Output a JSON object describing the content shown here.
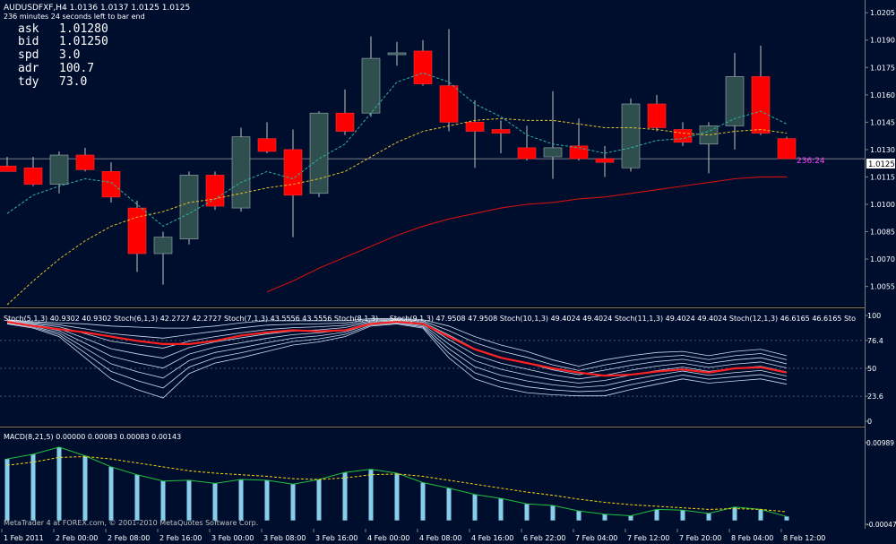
{
  "header": {
    "symbol_line": "AUDUSDFXF,H4  1.0136 1.0137 1.0125 1.0125",
    "timer_line": "236 minutes 24 seconds left to bar end"
  },
  "quote_box": [
    {
      "label": "ask",
      "value": "1.01280"
    },
    {
      "label": "bid",
      "value": "1.01250"
    },
    {
      "label": "spd",
      "value": "3.0"
    },
    {
      "label": "adr",
      "value": "100.7"
    },
    {
      "label": "tdy",
      "value": "73.0"
    }
  ],
  "bar_timer": "236:24",
  "current_price_label": "1.0125",
  "watermark": "MetaTrader 4 at FOREX.com, © 2001-2010 MetaQuotes Software Corp.",
  "stoch_legend": "Stoch(5,1,3) 40.9302 40.9302  Stoch(6,1,3) 42.2727 42.2727  Stoch(7,1,3) 43.5556 43.5556  Stoch(8,1,3) ...  Stoch(9,1,3) 47.9508 47.9508  Stoch(10,1,3) 49.4024 49.4024  Stoch(11,1,3) 49.4024 49.4024  Stoch(12,1,3) 46.6165 46.6165  Sto",
  "macd_legend": "MACD(8,21,5) 0.00000 0.00083 0.00083 0.00143",
  "colors": {
    "background": "#000e2e",
    "grid": "#1c2a55",
    "bull_candle": "#2f4f4f",
    "bear_candle": "#ff0000",
    "ma_fast": "#2fb3a0",
    "ma_mid": "#e0c02a",
    "ma_slow": "#d01010",
    "stoch_lines": "#c8dcf0",
    "stoch_main": "#ff2020",
    "macd_hist": "#87ceeb",
    "macd_signal": "#ffd700",
    "macd_line": "#20c040",
    "text": "#ffffff"
  },
  "chart_data": [
    {
      "type": "candlestick",
      "symbol": "AUDUSDFXF",
      "timeframe": "H4",
      "ylim": [
        1.0045,
        1.021
      ],
      "y_ticks": [
        "1.0205",
        "1.0190",
        "1.0175",
        "1.0160",
        "1.0145",
        "1.0130",
        "1.0115",
        "1.0100",
        "1.0085",
        "1.0070",
        "1.0055"
      ],
      "x_ticks": [
        "1 Feb 2011",
        "2 Feb 00:00",
        "2 Feb 08:00",
        "2 Feb 16:00",
        "3 Feb 00:00",
        "3 Feb 08:00",
        "3 Feb 16:00",
        "4 Feb 00:00",
        "4 Feb 08:00",
        "4 Feb 16:00",
        "6 Feb 22:00",
        "7 Feb 04:00",
        "7 Feb 12:00",
        "7 Feb 20:00",
        "8 Feb 04:00",
        "8 Feb 12:00"
      ],
      "candles": [
        {
          "o": 1.0121,
          "h": 1.0126,
          "l": 1.0118,
          "c": 1.0118
        },
        {
          "o": 1.012,
          "h": 1.0126,
          "l": 1.011,
          "c": 1.0111
        },
        {
          "o": 1.0111,
          "h": 1.0129,
          "l": 1.0106,
          "c": 1.0127
        },
        {
          "o": 1.0127,
          "h": 1.0131,
          "l": 1.0118,
          "c": 1.0119
        },
        {
          "o": 1.0118,
          "h": 1.0123,
          "l": 1.0101,
          "c": 1.0104
        },
        {
          "o": 1.0098,
          "h": 1.0102,
          "l": 1.0063,
          "c": 1.0073
        },
        {
          "o": 1.0073,
          "h": 1.0085,
          "l": 1.0056,
          "c": 1.0082
        },
        {
          "o": 1.0081,
          "h": 1.0118,
          "l": 1.0078,
          "c": 1.0116
        },
        {
          "o": 1.0116,
          "h": 1.0118,
          "l": 1.0097,
          "c": 1.0099
        },
        {
          "o": 1.0098,
          "h": 1.0142,
          "l": 1.0096,
          "c": 1.0137
        },
        {
          "o": 1.0136,
          "h": 1.0145,
          "l": 1.0128,
          "c": 1.0129
        },
        {
          "o": 1.013,
          "h": 1.0141,
          "l": 1.0082,
          "c": 1.0105
        },
        {
          "o": 1.0106,
          "h": 1.0151,
          "l": 1.0104,
          "c": 1.015
        },
        {
          "o": 1.015,
          "h": 1.0163,
          "l": 1.0138,
          "c": 1.014
        },
        {
          "o": 1.015,
          "h": 1.0192,
          "l": 1.0148,
          "c": 1.018
        },
        {
          "o": 1.0182,
          "h": 1.0189,
          "l": 1.0176,
          "c": 1.0183
        },
        {
          "o": 1.0184,
          "h": 1.019,
          "l": 1.0165,
          "c": 1.0166
        },
        {
          "o": 1.0165,
          "h": 1.0196,
          "l": 1.014,
          "c": 1.0145
        },
        {
          "o": 1.0145,
          "h": 1.0157,
          "l": 1.012,
          "c": 1.014
        },
        {
          "o": 1.0141,
          "h": 1.0146,
          "l": 1.0128,
          "c": 1.0139
        },
        {
          "o": 1.0131,
          "h": 1.0143,
          "l": 1.0124,
          "c": 1.0125
        },
        {
          "o": 1.0126,
          "h": 1.0162,
          "l": 1.0114,
          "c": 1.0131
        },
        {
          "o": 1.0132,
          "h": 1.0147,
          "l": 1.0124,
          "c": 1.0125
        },
        {
          "o": 1.0125,
          "h": 1.0132,
          "l": 1.0115,
          "c": 1.0123
        },
        {
          "o": 1.012,
          "h": 1.0158,
          "l": 1.0118,
          "c": 1.0155
        },
        {
          "o": 1.0155,
          "h": 1.016,
          "l": 1.014,
          "c": 1.0142
        },
        {
          "o": 1.0141,
          "h": 1.0145,
          "l": 1.0132,
          "c": 1.0134
        },
        {
          "o": 1.0133,
          "h": 1.0145,
          "l": 1.0117,
          "c": 1.0143
        },
        {
          "o": 1.0143,
          "h": 1.0183,
          "l": 1.013,
          "c": 1.017
        },
        {
          "o": 1.017,
          "h": 1.0187,
          "l": 1.0138,
          "c": 1.0139
        },
        {
          "o": 1.0136,
          "h": 1.0137,
          "l": 1.0125,
          "c": 1.0125
        }
      ],
      "ma_fast": [
        1.0095,
        1.0105,
        1.011,
        1.0114,
        1.0112,
        1.01,
        1.0088,
        1.0095,
        1.0103,
        1.0112,
        1.0118,
        1.0114,
        1.0125,
        1.0133,
        1.015,
        1.0167,
        1.0172,
        1.0167,
        1.0155,
        1.0148,
        1.0138,
        1.0133,
        1.0131,
        1.0128,
        1.0131,
        1.0135,
        1.0136,
        1.014,
        1.0147,
        1.0151,
        1.0144
      ],
      "ma_mid": [
        1.0045,
        1.0058,
        1.007,
        1.008,
        1.0088,
        1.0093,
        1.0096,
        1.0101,
        1.0103,
        1.0106,
        1.0109,
        1.0111,
        1.0114,
        1.0118,
        1.0126,
        1.0134,
        1.014,
        1.0143,
        1.0146,
        1.0147,
        1.0146,
        1.0146,
        1.0144,
        1.0142,
        1.0142,
        1.0141,
        1.0139,
        1.0138,
        1.014,
        1.0141,
        1.0139
      ],
      "ma_slow": [
        null,
        null,
        null,
        null,
        null,
        null,
        null,
        null,
        null,
        null,
        1.0052,
        1.0058,
        1.0065,
        1.0071,
        1.0077,
        1.0083,
        1.0088,
        1.0092,
        1.0095,
        1.0098,
        1.01,
        1.0101,
        1.0103,
        1.0104,
        1.0106,
        1.0108,
        1.011,
        1.0112,
        1.0114,
        1.0115,
        1.0115
      ],
      "current_price": 1.0125
    },
    {
      "type": "line",
      "name": "Stochastic ribbon",
      "ylim": [
        0,
        100
      ],
      "y_ticks": [
        "100",
        "76.4",
        "50",
        "23.6",
        "0"
      ],
      "main": [
        94,
        90,
        87,
        84,
        80,
        76,
        73,
        73,
        76,
        81,
        84,
        86,
        85,
        86,
        92,
        94,
        92,
        80,
        68,
        60,
        55,
        50,
        46,
        43,
        44,
        47,
        49,
        46,
        50,
        51,
        46
      ],
      "spread_low": [
        92,
        88,
        80,
        60,
        40,
        30,
        22,
        45,
        55,
        60,
        66,
        72,
        75,
        80,
        90,
        92,
        88,
        60,
        40,
        32,
        27,
        25,
        24,
        24,
        30,
        35,
        40,
        36,
        38,
        40,
        35
      ],
      "spread_high": [
        96,
        94,
        93,
        92,
        90,
        89,
        88,
        88,
        90,
        93,
        95,
        95,
        95,
        95,
        97,
        97,
        96,
        90,
        80,
        72,
        66,
        58,
        52,
        58,
        62,
        65,
        66,
        62,
        66,
        68,
        62
      ]
    },
    {
      "type": "bar",
      "name": "MACD",
      "ylim": [
        -0.0006,
        0.011
      ],
      "y_ticks": [
        "0.00989",
        "-0.00047"
      ],
      "histogram": [
        0.0078,
        0.0084,
        0.0093,
        0.0082,
        0.0068,
        0.0058,
        0.005,
        0.0051,
        0.0047,
        0.0052,
        0.0051,
        0.0046,
        0.0052,
        0.0061,
        0.0065,
        0.006,
        0.0048,
        0.0041,
        0.0033,
        0.0028,
        0.0021,
        0.0019,
        0.0012,
        0.0008,
        0.0006,
        0.0014,
        0.0013,
        0.0009,
        0.0017,
        0.0014,
        0.0005
      ],
      "signal": [
        0.007,
        0.0074,
        0.008,
        0.0081,
        0.0078,
        0.0073,
        0.0068,
        0.0063,
        0.006,
        0.0058,
        0.0056,
        0.0053,
        0.0052,
        0.0054,
        0.0058,
        0.0059,
        0.0056,
        0.0051,
        0.0046,
        0.0041,
        0.0036,
        0.0032,
        0.0027,
        0.0023,
        0.002,
        0.0018,
        0.0016,
        0.0014,
        0.0015,
        0.0014,
        0.0011
      ]
    }
  ]
}
